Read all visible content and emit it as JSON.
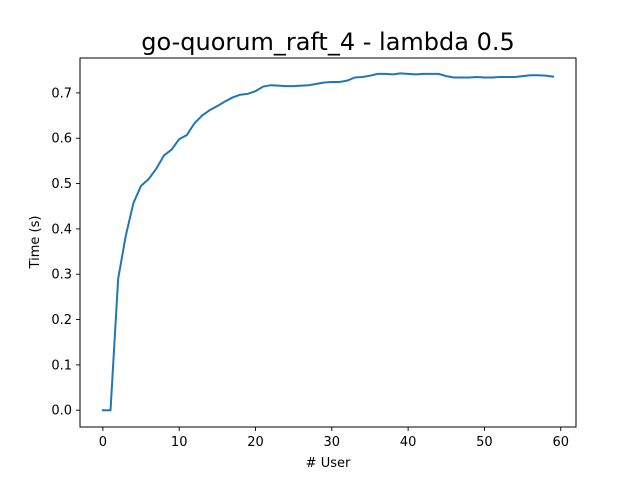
{
  "chart_data": {
    "type": "line",
    "title": "go-quorum_raft_4 - lambda 0.5",
    "xlabel": "# User",
    "ylabel": "Time (s)",
    "xlim": [
      -3,
      62
    ],
    "ylim": [
      -0.037,
      0.777
    ],
    "xticks": [
      0,
      10,
      20,
      30,
      40,
      50,
      60
    ],
    "yticks": [
      0.0,
      0.1,
      0.2,
      0.3,
      0.4,
      0.5,
      0.6,
      0.7
    ],
    "ytick_labels": [
      "0.0",
      "0.1",
      "0.2",
      "0.3",
      "0.4",
      "0.5",
      "0.6",
      "0.7"
    ],
    "grid": false,
    "line_color": "#1f77b4",
    "series": [
      {
        "x": [
          0,
          1,
          2,
          3,
          4,
          5,
          6,
          7,
          8,
          9,
          10,
          11,
          12,
          13,
          14,
          15,
          16,
          17,
          18,
          19,
          20,
          21,
          22,
          23,
          24,
          25,
          26,
          27,
          28,
          29,
          30,
          31,
          32,
          33,
          34,
          35,
          36,
          37,
          38,
          39,
          40,
          41,
          42,
          43,
          44,
          45,
          46,
          47,
          48,
          49,
          50,
          51,
          52,
          53,
          54,
          55,
          56,
          57,
          58,
          59
        ],
        "values": [
          0.0,
          0.0,
          0.29,
          0.385,
          0.457,
          0.495,
          0.51,
          0.533,
          0.562,
          0.575,
          0.598,
          0.607,
          0.633,
          0.65,
          0.662,
          0.671,
          0.681,
          0.69,
          0.696,
          0.698,
          0.704,
          0.714,
          0.717,
          0.716,
          0.715,
          0.715,
          0.716,
          0.717,
          0.72,
          0.723,
          0.724,
          0.724,
          0.727,
          0.734,
          0.735,
          0.738,
          0.742,
          0.742,
          0.741,
          0.743,
          0.742,
          0.741,
          0.742,
          0.742,
          0.742,
          0.737,
          0.734,
          0.734,
          0.734,
          0.735,
          0.734,
          0.734,
          0.735,
          0.735,
          0.735,
          0.737,
          0.739,
          0.739,
          0.738,
          0.736
        ]
      }
    ]
  }
}
